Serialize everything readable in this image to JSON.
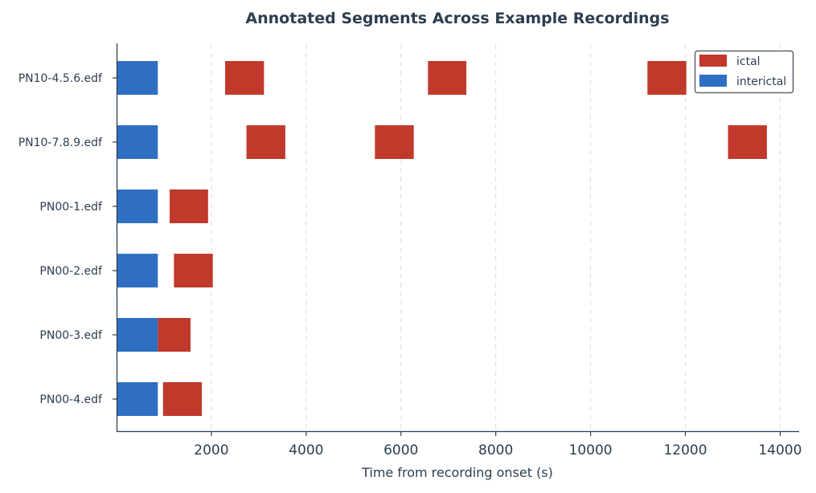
{
  "chart_data": {
    "type": "broken_barh",
    "title": "Annotated Segments Across Example Recordings",
    "xlabel": "Time from recording onset (s)",
    "ylabel": "",
    "xlim": [
      0,
      14400
    ],
    "xticks": [
      2000,
      4000,
      6000,
      8000,
      10000,
      12000,
      14000
    ],
    "grid": "vertical-dashed",
    "legend": {
      "position": "top-right"
    },
    "categories": [
      "PN10-4.5.6.edf",
      "PN10-7.8.9.edf",
      "PN00-1.edf",
      "PN00-2.edf",
      "PN00-3.edf",
      "PN00-4.edf"
    ],
    "series": [
      {
        "name": "ictal",
        "color": "#c0392b",
        "segments": [
          [
            [
              2290,
              3110
            ],
            [
              6570,
              7380
            ],
            [
              11200,
              12020
            ]
          ],
          [
            [
              2740,
              3560
            ],
            [
              5450,
              6270
            ],
            [
              12900,
              13720
            ]
          ],
          [
            [
              1120,
              1930
            ]
          ],
          [
            [
              1210,
              2030
            ]
          ],
          [
            [
              870,
              1560
            ]
          ],
          [
            [
              980,
              1800
            ]
          ]
        ]
      },
      {
        "name": "interictal",
        "color": "#2e6fc1",
        "segments": [
          [
            [
              0,
              870
            ]
          ],
          [
            [
              0,
              870
            ]
          ],
          [
            [
              0,
              870
            ]
          ],
          [
            [
              0,
              870
            ]
          ],
          [
            [
              0,
              870
            ]
          ],
          [
            [
              0,
              870
            ]
          ]
        ]
      }
    ]
  }
}
